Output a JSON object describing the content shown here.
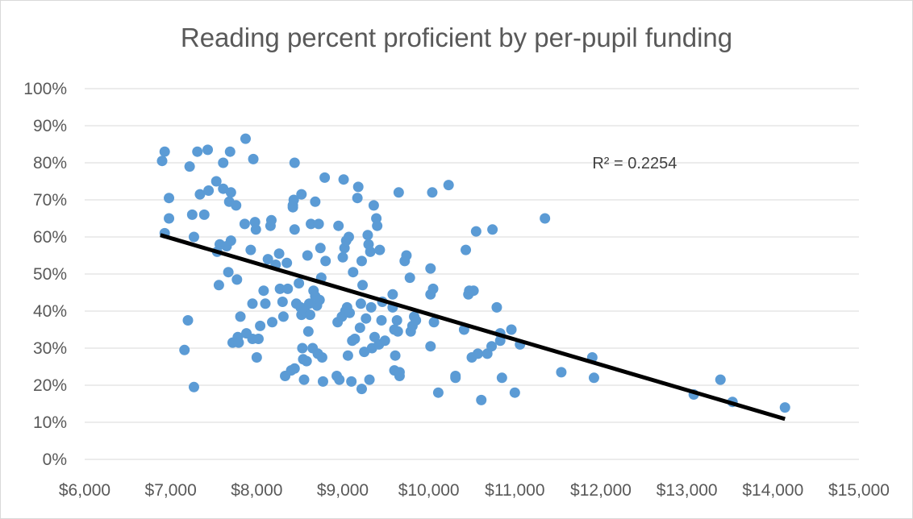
{
  "chart_data": {
    "type": "scatter",
    "title": "Reading percent proficient by per-pupil funding",
    "xlabel": "",
    "ylabel": "",
    "xlim": [
      6000,
      15000
    ],
    "ylim": [
      0,
      1
    ],
    "x_ticks": [
      6000,
      7000,
      8000,
      9000,
      10000,
      11000,
      12000,
      13000,
      14000,
      15000
    ],
    "x_tick_labels": [
      "$6,000",
      "$7,000",
      "$8,000",
      "$9,000",
      "$10,000",
      "$11,000",
      "$12,000",
      "$13,000",
      "$14,000",
      "$15,000"
    ],
    "y_ticks": [
      0,
      0.1,
      0.2,
      0.3,
      0.4,
      0.5,
      0.6,
      0.7,
      0.8,
      0.9,
      1.0
    ],
    "y_tick_labels": [
      "0%",
      "10%",
      "20%",
      "30%",
      "40%",
      "50%",
      "60%",
      "70%",
      "80%",
      "90%",
      "100%"
    ],
    "grid": "horizontal",
    "legend": "none",
    "marker_color": "#5b9bd5",
    "trendline": {
      "type": "linear",
      "color": "#000000",
      "start": [
        6880,
        0.605
      ],
      "end": [
        14140,
        0.109
      ],
      "r_squared_label": "R² = 0.2254"
    },
    "points": [
      [
        6900,
        0.805
      ],
      [
        6930,
        0.83
      ],
      [
        6930,
        0.61
      ],
      [
        6980,
        0.705
      ],
      [
        6980,
        0.65
      ],
      [
        7160,
        0.295
      ],
      [
        7200,
        0.375
      ],
      [
        7220,
        0.79
      ],
      [
        7250,
        0.66
      ],
      [
        7270,
        0.6
      ],
      [
        7270,
        0.195
      ],
      [
        7310,
        0.83
      ],
      [
        7340,
        0.715
      ],
      [
        7390,
        0.66
      ],
      [
        7430,
        0.835
      ],
      [
        7440,
        0.725
      ],
      [
        7530,
        0.75
      ],
      [
        7540,
        0.56
      ],
      [
        7560,
        0.47
      ],
      [
        7570,
        0.58
      ],
      [
        7610,
        0.8
      ],
      [
        7610,
        0.73
      ],
      [
        7650,
        0.575
      ],
      [
        7670,
        0.505
      ],
      [
        7680,
        0.695
      ],
      [
        7690,
        0.83
      ],
      [
        7700,
        0.72
      ],
      [
        7700,
        0.59
      ],
      [
        7720,
        0.315
      ],
      [
        7760,
        0.685
      ],
      [
        7770,
        0.485
      ],
      [
        7780,
        0.33
      ],
      [
        7790,
        0.315
      ],
      [
        7810,
        0.385
      ],
      [
        7860,
        0.635
      ],
      [
        7870,
        0.865
      ],
      [
        7880,
        0.34
      ],
      [
        7930,
        0.565
      ],
      [
        7950,
        0.325
      ],
      [
        7950,
        0.42
      ],
      [
        7960,
        0.81
      ],
      [
        7980,
        0.64
      ],
      [
        7990,
        0.62
      ],
      [
        8000,
        0.275
      ],
      [
        8020,
        0.325
      ],
      [
        8040,
        0.36
      ],
      [
        8080,
        0.455
      ],
      [
        8100,
        0.42
      ],
      [
        8130,
        0.54
      ],
      [
        8160,
        0.63
      ],
      [
        8170,
        0.645
      ],
      [
        8180,
        0.37
      ],
      [
        8220,
        0.525
      ],
      [
        8260,
        0.555
      ],
      [
        8270,
        0.46
      ],
      [
        8300,
        0.425
      ],
      [
        8310,
        0.385
      ],
      [
        8330,
        0.225
      ],
      [
        8350,
        0.53
      ],
      [
        8360,
        0.46
      ],
      [
        8400,
        0.24
      ],
      [
        8420,
        0.68
      ],
      [
        8420,
        0.685
      ],
      [
        8430,
        0.7
      ],
      [
        8440,
        0.8
      ],
      [
        8440,
        0.62
      ],
      [
        8440,
        0.245
      ],
      [
        8460,
        0.42
      ],
      [
        8490,
        0.475
      ],
      [
        8510,
        0.41
      ],
      [
        8520,
        0.715
      ],
      [
        8520,
        0.39
      ],
      [
        8530,
        0.3
      ],
      [
        8540,
        0.27
      ],
      [
        8550,
        0.215
      ],
      [
        8560,
        0.4
      ],
      [
        8580,
        0.265
      ],
      [
        8590,
        0.55
      ],
      [
        8600,
        0.345
      ],
      [
        8610,
        0.42
      ],
      [
        8620,
        0.39
      ],
      [
        8630,
        0.635
      ],
      [
        8650,
        0.3
      ],
      [
        8660,
        0.455
      ],
      [
        8680,
        0.695
      ],
      [
        8680,
        0.44
      ],
      [
        8700,
        0.415
      ],
      [
        8710,
        0.285
      ],
      [
        8720,
        0.635
      ],
      [
        8730,
        0.43
      ],
      [
        8740,
        0.57
      ],
      [
        8750,
        0.49
      ],
      [
        8760,
        0.275
      ],
      [
        8770,
        0.21
      ],
      [
        8790,
        0.76
      ],
      [
        8800,
        0.535
      ],
      [
        8930,
        0.225
      ],
      [
        8940,
        0.37
      ],
      [
        8950,
        0.63
      ],
      [
        8960,
        0.215
      ],
      [
        8990,
        0.385
      ],
      [
        9000,
        0.545
      ],
      [
        9010,
        0.755
      ],
      [
        9020,
        0.57
      ],
      [
        9030,
        0.4
      ],
      [
        9040,
        0.59
      ],
      [
        9050,
        0.41
      ],
      [
        9060,
        0.28
      ],
      [
        9070,
        0.6
      ],
      [
        9080,
        0.395
      ],
      [
        9100,
        0.21
      ],
      [
        9110,
        0.32
      ],
      [
        9120,
        0.505
      ],
      [
        9140,
        0.325
      ],
      [
        9170,
        0.705
      ],
      [
        9180,
        0.735
      ],
      [
        9200,
        0.355
      ],
      [
        9210,
        0.42
      ],
      [
        9220,
        0.19
      ],
      [
        9220,
        0.535
      ],
      [
        9230,
        0.47
      ],
      [
        9250,
        0.29
      ],
      [
        9270,
        0.38
      ],
      [
        9290,
        0.605
      ],
      [
        9300,
        0.58
      ],
      [
        9310,
        0.215
      ],
      [
        9320,
        0.56
      ],
      [
        9330,
        0.41
      ],
      [
        9340,
        0.3
      ],
      [
        9360,
        0.685
      ],
      [
        9370,
        0.33
      ],
      [
        9390,
        0.65
      ],
      [
        9400,
        0.63
      ],
      [
        9420,
        0.31
      ],
      [
        9430,
        0.565
      ],
      [
        9450,
        0.375
      ],
      [
        9460,
        0.425
      ],
      [
        9490,
        0.32
      ],
      [
        9580,
        0.445
      ],
      [
        9580,
        0.41
      ],
      [
        9600,
        0.24
      ],
      [
        9600,
        0.35
      ],
      [
        9610,
        0.28
      ],
      [
        9630,
        0.375
      ],
      [
        9640,
        0.345
      ],
      [
        9650,
        0.72
      ],
      [
        9660,
        0.225
      ],
      [
        9660,
        0.235
      ],
      [
        9720,
        0.535
      ],
      [
        9740,
        0.55
      ],
      [
        9780,
        0.49
      ],
      [
        9790,
        0.345
      ],
      [
        9810,
        0.36
      ],
      [
        9830,
        0.385
      ],
      [
        9850,
        0.375
      ],
      [
        10020,
        0.305
      ],
      [
        10020,
        0.445
      ],
      [
        10020,
        0.515
      ],
      [
        10040,
        0.72
      ],
      [
        10050,
        0.46
      ],
      [
        10060,
        0.37
      ],
      [
        10110,
        0.18
      ],
      [
        10230,
        0.74
      ],
      [
        10310,
        0.225
      ],
      [
        10310,
        0.22
      ],
      [
        10410,
        0.35
      ],
      [
        10430,
        0.565
      ],
      [
        10460,
        0.445
      ],
      [
        10470,
        0.455
      ],
      [
        10500,
        0.275
      ],
      [
        10520,
        0.455
      ],
      [
        10550,
        0.615
      ],
      [
        10570,
        0.285
      ],
      [
        10610,
        0.16
      ],
      [
        10680,
        0.285
      ],
      [
        10730,
        0.305
      ],
      [
        10740,
        0.62
      ],
      [
        10790,
        0.41
      ],
      [
        10830,
        0.34
      ],
      [
        10830,
        0.32
      ],
      [
        10850,
        0.22
      ],
      [
        10960,
        0.35
      ],
      [
        11000,
        0.18
      ],
      [
        11060,
        0.31
      ],
      [
        11350,
        0.65
      ],
      [
        11540,
        0.235
      ],
      [
        11900,
        0.275
      ],
      [
        11920,
        0.22
      ],
      [
        13080,
        0.175
      ],
      [
        13390,
        0.215
      ],
      [
        13530,
        0.155
      ],
      [
        14140,
        0.14
      ]
    ]
  }
}
